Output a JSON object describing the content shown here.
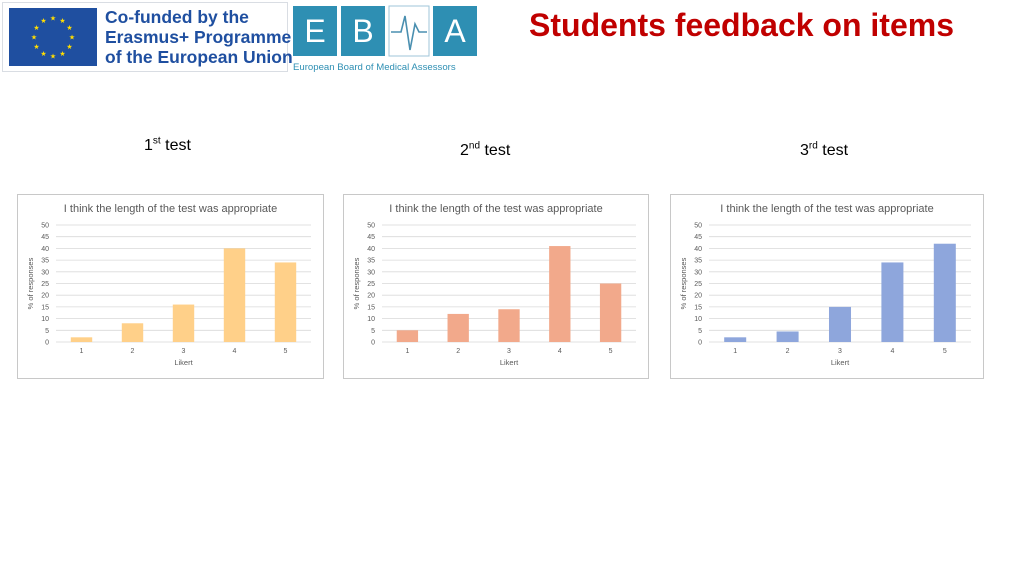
{
  "header": {
    "eu_logo_lines": [
      "Co-funded by the",
      "Erasmus+ Programme",
      "of the European Union"
    ],
    "ebma_letters": [
      "E",
      "B",
      "A"
    ],
    "ebma_subtitle": "European Board of Medical Assessors",
    "title": "Students feedback on items"
  },
  "tests": [
    {
      "num": "1",
      "suffix": "st",
      "word": "test"
    },
    {
      "num": "2",
      "suffix": "nd",
      "word": "test"
    },
    {
      "num": "3",
      "suffix": "rd",
      "word": "test"
    }
  ],
  "colors": {
    "title": "#c00000",
    "eu_blue": "#1f4fa0",
    "ebma_teal": "#2e8fb3",
    "chart1": "#ffd089",
    "chart2": "#f2a98b",
    "chart3": "#8ea6dc"
  },
  "chart_data": [
    {
      "type": "bar",
      "title": "I think the length of the test was appropriate",
      "xlabel": "Likert",
      "ylabel": "% of responses",
      "categories": [
        "1",
        "2",
        "3",
        "4",
        "5"
      ],
      "values": [
        2,
        8,
        16,
        40,
        34
      ],
      "ylim": [
        0,
        50
      ],
      "yticks": [
        0,
        5,
        10,
        15,
        20,
        25,
        30,
        35,
        40,
        45,
        50
      ],
      "grid": true,
      "color": "#ffd089"
    },
    {
      "type": "bar",
      "title": "I think the length of the test was appropriate",
      "xlabel": "Likert",
      "ylabel": "% of responses",
      "categories": [
        "1",
        "2",
        "3",
        "4",
        "5"
      ],
      "values": [
        5,
        12,
        14,
        41,
        25
      ],
      "ylim": [
        0,
        50
      ],
      "yticks": [
        0,
        5,
        10,
        15,
        20,
        25,
        30,
        35,
        40,
        45,
        50
      ],
      "grid": true,
      "color": "#f2a98b"
    },
    {
      "type": "bar",
      "title": "I think the length of the test was appropriate",
      "xlabel": "Likert",
      "ylabel": "% of responses",
      "categories": [
        "1",
        "2",
        "3",
        "4",
        "5"
      ],
      "values": [
        2,
        4.5,
        15,
        34,
        42
      ],
      "ylim": [
        0,
        50
      ],
      "yticks": [
        0,
        5,
        10,
        15,
        20,
        25,
        30,
        35,
        40,
        45,
        50
      ],
      "grid": true,
      "color": "#8ea6dc"
    }
  ]
}
